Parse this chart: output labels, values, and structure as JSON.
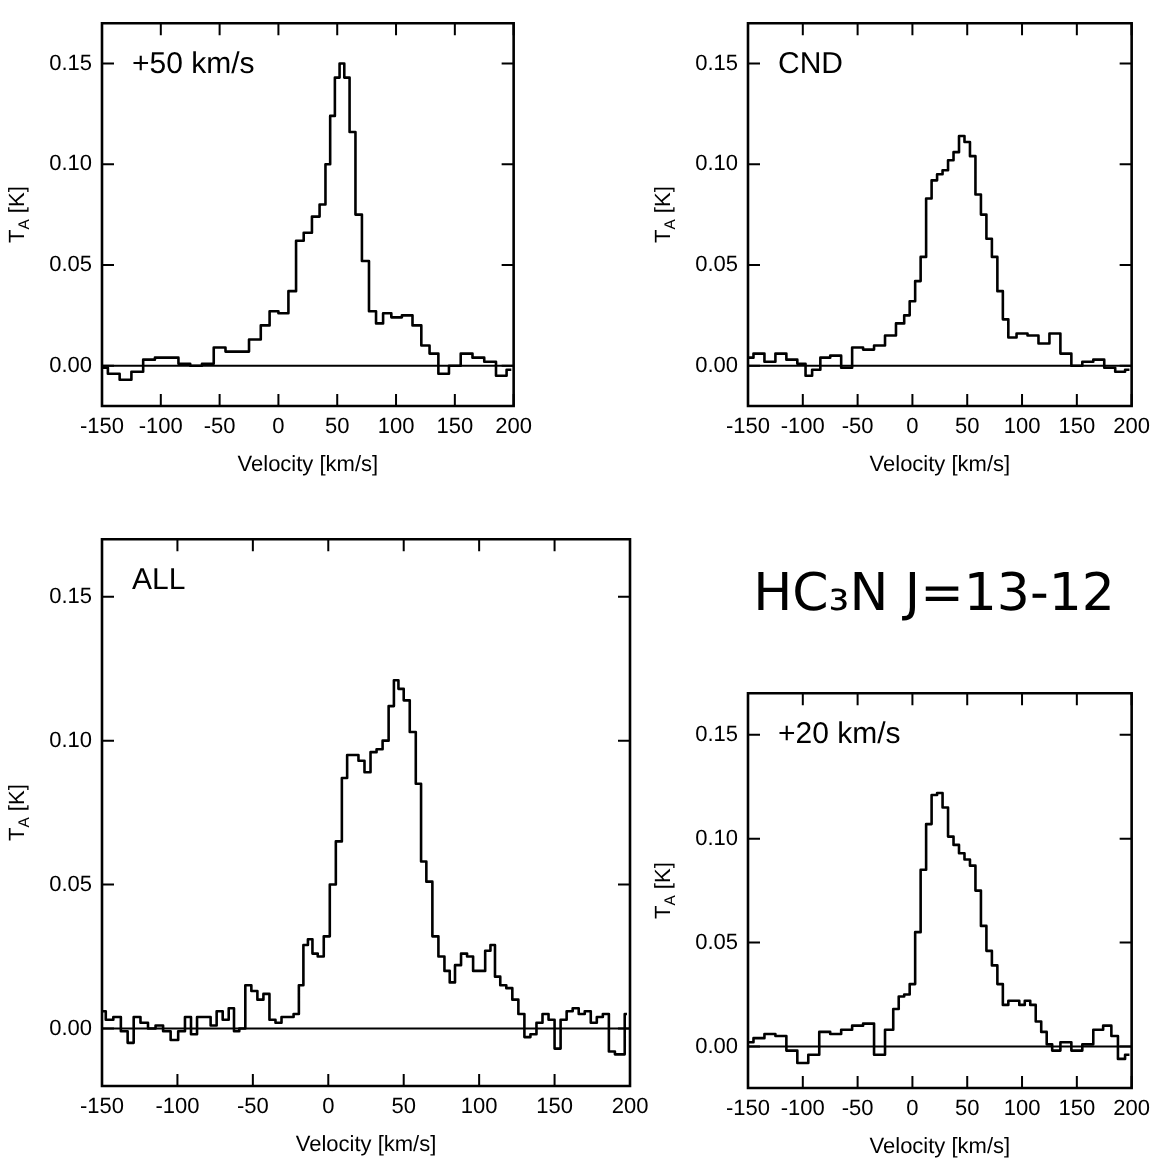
{
  "chart_data": [
    {
      "type": "step",
      "annotations": [
        "+50 km/s"
      ],
      "xlabel": "Velocity [km/s]",
      "ylabel": "T$_{A}$ [K]",
      "xlim": [
        -150,
        200
      ],
      "ylim": [
        -0.02,
        0.17
      ],
      "xticks": [
        -150,
        -100,
        -50,
        0,
        50,
        100,
        150,
        200
      ],
      "yticks": [
        {
          "value": 0,
          "label": "0.00"
        },
        {
          "value": 0.05,
          "label": "0.05"
        },
        {
          "value": 0.1,
          "label": "0.10"
        },
        {
          "value": 0.15,
          "label": "0.15"
        }
      ],
      "ref_lines": [
        {
          "axis": "y",
          "value": 0,
          "color": "#000000"
        }
      ],
      "color": "#000000",
      "x": [
        -150,
        -140,
        -130,
        -120,
        -110,
        -100,
        -90,
        -80,
        -70,
        -60,
        -50,
        -40,
        -30,
        -20,
        -10,
        -5,
        5,
        12,
        18,
        25,
        32,
        38,
        42,
        46,
        50,
        54,
        58,
        63,
        68,
        74,
        80,
        86,
        92,
        100,
        110,
        118,
        125,
        132,
        140,
        150,
        160,
        170,
        180,
        190,
        198
      ],
      "values": [
        -0.001,
        -0.004,
        -0.007,
        -0.003,
        0.003,
        0.004,
        0.004,
        0.001,
        0.0,
        0.001,
        0.009,
        0.007,
        0.007,
        0.013,
        0.02,
        0.027,
        0.026,
        0.037,
        0.062,
        0.066,
        0.074,
        0.08,
        0.1,
        0.124,
        0.143,
        0.15,
        0.143,
        0.116,
        0.075,
        0.052,
        0.027,
        0.021,
        0.026,
        0.024,
        0.025,
        0.02,
        0.01,
        0.006,
        -0.004,
        0.0,
        0.006,
        0.004,
        0.002,
        -0.005,
        -0.002
      ]
    },
    {
      "type": "step",
      "annotations": [
        "CND"
      ],
      "xlabel": "Velocity [km/s]",
      "ylabel": "T$_{A}$ [K]",
      "xlim": [
        -150,
        200
      ],
      "ylim": [
        -0.02,
        0.17
      ],
      "xticks": [
        -150,
        -100,
        -50,
        0,
        50,
        100,
        150,
        200
      ],
      "yticks": [
        {
          "value": 0,
          "label": "0.00"
        },
        {
          "value": 0.05,
          "label": "0.05"
        },
        {
          "value": 0.1,
          "label": "0.10"
        },
        {
          "value": 0.15,
          "label": "0.15"
        }
      ],
      "ref_lines": [
        {
          "axis": "y",
          "value": 0,
          "color": "#000000"
        }
      ],
      "color": "#000000",
      "x": [
        -150,
        -140,
        -130,
        -120,
        -110,
        -100,
        -95,
        -88,
        -80,
        -70,
        -60,
        -50,
        -40,
        -30,
        -20,
        -10,
        -5,
        0,
        5,
        10,
        15,
        20,
        25,
        30,
        35,
        40,
        45,
        50,
        55,
        60,
        65,
        70,
        75,
        80,
        85,
        90,
        100,
        110,
        120,
        130,
        140,
        150,
        160,
        170,
        180,
        190,
        198
      ],
      "values": [
        0.004,
        0.006,
        0.002,
        0.006,
        0.003,
        0.001,
        -0.005,
        -0.002,
        0.004,
        0.005,
        -0.001,
        0.009,
        0.008,
        0.01,
        0.015,
        0.021,
        0.025,
        0.032,
        0.042,
        0.054,
        0.083,
        0.092,
        0.095,
        0.097,
        0.102,
        0.106,
        0.114,
        0.111,
        0.104,
        0.085,
        0.075,
        0.063,
        0.054,
        0.037,
        0.023,
        0.014,
        0.016,
        0.015,
        0.011,
        0.016,
        0.006,
        0.0,
        0.002,
        0.003,
        -0.001,
        -0.003,
        -0.002
      ]
    },
    {
      "type": "step",
      "annotations": [
        "ALL"
      ],
      "xlabel": "Velocity [km/s]",
      "ylabel": "T$_{A}$ [K]",
      "xlim": [
        -150,
        200
      ],
      "ylim": [
        -0.02,
        0.17
      ],
      "xticks": [
        -150,
        -100,
        -50,
        0,
        50,
        100,
        150,
        200
      ],
      "yticks": [
        {
          "value": 0,
          "label": "0.00"
        },
        {
          "value": 0.05,
          "label": "0.05"
        },
        {
          "value": 0.1,
          "label": "0.10"
        },
        {
          "value": 0.15,
          "label": "0.15"
        }
      ],
      "ref_lines": [
        {
          "axis": "y",
          "value": 0,
          "color": "#000000"
        }
      ],
      "color": "#000000",
      "x": [
        -150,
        -145,
        -140,
        -135,
        -131,
        -127,
        -122,
        -117,
        -112,
        -107,
        -102,
        -97,
        -93,
        -89,
        -85,
        -80,
        -76,
        -72,
        -68,
        -64,
        -61,
        -57,
        -53,
        -49,
        -45,
        -41,
        -37,
        -33,
        -29,
        -25,
        -21,
        -18,
        -15,
        -12,
        -9,
        -5,
        -1,
        3,
        7,
        11,
        14,
        18,
        22,
        26,
        30,
        34,
        38,
        42,
        45,
        48,
        52,
        56,
        60,
        63,
        67,
        71,
        75,
        79,
        82,
        86,
        90,
        94,
        98,
        102,
        106,
        109,
        112,
        116,
        120,
        124,
        128,
        132,
        136,
        140,
        144,
        148,
        152,
        156,
        160,
        164,
        168,
        172,
        176,
        180,
        184,
        188,
        192,
        195,
        198
      ],
      "values": [
        0.006,
        0.003,
        0.004,
        -0.001,
        -0.005,
        0.004,
        0.002,
        0.0,
        0.001,
        -0.001,
        -0.004,
        -0.001,
        0.004,
        -0.002,
        0.004,
        0.004,
        0.001,
        0.006,
        0.003,
        0.007,
        -0.001,
        0.0,
        0.015,
        0.013,
        0.01,
        0.012,
        0.003,
        0.002,
        0.004,
        0.004,
        0.005,
        0.015,
        0.029,
        0.031,
        0.026,
        0.025,
        0.032,
        0.05,
        0.065,
        0.087,
        0.095,
        0.095,
        0.093,
        0.089,
        0.096,
        0.097,
        0.1,
        0.112,
        0.121,
        0.118,
        0.114,
        0.103,
        0.085,
        0.058,
        0.051,
        0.032,
        0.025,
        0.02,
        0.016,
        0.022,
        0.026,
        0.025,
        0.02,
        0.02,
        0.027,
        0.029,
        0.018,
        0.015,
        0.014,
        0.01,
        0.005,
        -0.003,
        -0.002,
        0.002,
        0.005,
        0.003,
        -0.007,
        0.003,
        0.006,
        0.007,
        0.005,
        0.006,
        0.002,
        0.004,
        0.005,
        -0.008,
        -0.009,
        -0.009,
        0.005
      ]
    },
    {
      "type": "step",
      "annotations": [
        "+20 km/s"
      ],
      "xlabel": "Velocity [km/s]",
      "ylabel": "T$_{A}$ [K]",
      "xlim": [
        -150,
        200
      ],
      "ylim": [
        -0.02,
        0.17
      ],
      "xticks": [
        -150,
        -100,
        -50,
        0,
        50,
        100,
        150,
        200
      ],
      "yticks": [
        {
          "value": 0,
          "label": "0.00"
        },
        {
          "value": 0.05,
          "label": "0.05"
        },
        {
          "value": 0.1,
          "label": "0.10"
        },
        {
          "value": 0.15,
          "label": "0.15"
        }
      ],
      "ref_lines": [
        {
          "axis": "y",
          "value": 0,
          "color": "#000000"
        }
      ],
      "color": "#000000",
      "x": [
        -150,
        -140,
        -130,
        -120,
        -110,
        -100,
        -90,
        -80,
        -70,
        -60,
        -50,
        -40,
        -30,
        -20,
        -15,
        -10,
        -5,
        0,
        5,
        10,
        15,
        20,
        25,
        30,
        35,
        40,
        45,
        50,
        55,
        60,
        65,
        70,
        75,
        80,
        85,
        90,
        95,
        100,
        105,
        110,
        115,
        120,
        125,
        130,
        140,
        150,
        160,
        170,
        178,
        185,
        190,
        198
      ],
      "values": [
        0.002,
        0.004,
        0.006,
        0.005,
        -0.002,
        -0.008,
        -0.004,
        0.007,
        0.006,
        0.008,
        0.01,
        0.011,
        -0.004,
        0.008,
        0.018,
        0.024,
        0.025,
        0.03,
        0.055,
        0.085,
        0.107,
        0.121,
        0.122,
        0.115,
        0.101,
        0.097,
        0.093,
        0.09,
        0.087,
        0.075,
        0.058,
        0.046,
        0.039,
        0.03,
        0.02,
        0.022,
        0.022,
        0.02,
        0.022,
        0.02,
        0.012,
        0.007,
        0.001,
        -0.002,
        0.002,
        -0.002,
        0.001,
        0.008,
        0.01,
        0.005,
        -0.006,
        -0.004
      ]
    },
    {
      "type": "other",
      "title": "HC₃N J=13-12"
    }
  ]
}
